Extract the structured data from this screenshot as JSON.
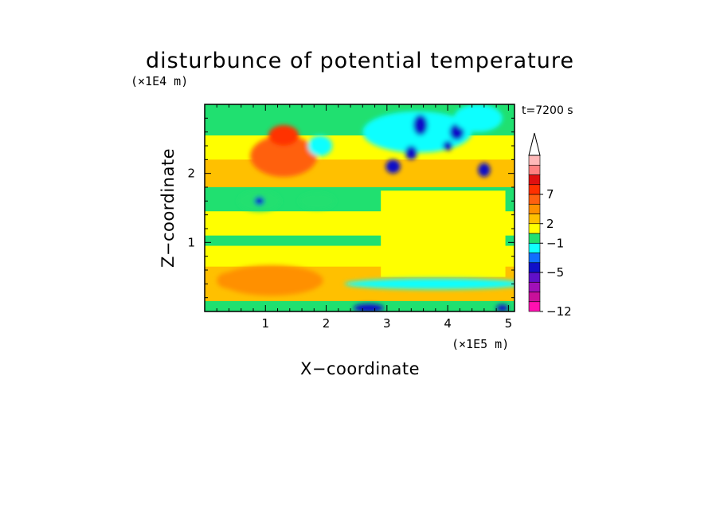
{
  "chart_data": {
    "type": "heatmap",
    "title": "disturbunce of potential temperature",
    "xlabel": "X−coordinate",
    "ylabel": "Z−coordinate",
    "x_unit_label": "(×1E5 m)",
    "y_unit_label": "(×1E4 m)",
    "time_label": "t=7200 s",
    "xlim": [
      0,
      5.1
    ],
    "ylim": [
      0,
      3.0
    ],
    "x_ticks": [
      {
        "value": 1,
        "label": "1"
      },
      {
        "value": 2,
        "label": "2"
      },
      {
        "value": 3,
        "label": "3"
      },
      {
        "value": 4,
        "label": "4"
      },
      {
        "value": 5,
        "label": "5"
      }
    ],
    "y_ticks": [
      {
        "value": 1,
        "label": "1"
      },
      {
        "value": 2,
        "label": "2"
      }
    ],
    "colorbar": {
      "levels": [
        {
          "color": "#ff10b0"
        },
        {
          "color": "#c8109a"
        },
        {
          "color": "#a010b8"
        },
        {
          "color": "#6010c8"
        },
        {
          "color": "#1010c8"
        },
        {
          "color": "#1070ff"
        },
        {
          "color": "#10ffff"
        },
        {
          "color": "#20e070"
        },
        {
          "color": "#ffff00"
        },
        {
          "color": "#ffc000"
        },
        {
          "color": "#ff9000"
        },
        {
          "color": "#ff6010"
        },
        {
          "color": "#ff3000"
        },
        {
          "color": "#e01010"
        },
        {
          "color": "#ff8080"
        },
        {
          "color": "#ffb8b8"
        }
      ],
      "extend_max": true,
      "labels": [
        {
          "index": 0,
          "label": "−12"
        },
        {
          "index": 4,
          "label": "−5"
        },
        {
          "index": 7,
          "label": "−1"
        },
        {
          "index": 9,
          "label": "2"
        },
        {
          "index": 12,
          "label": "7"
        }
      ]
    },
    "features": [
      {
        "x": 1.1,
        "z": 0.45,
        "level": 10,
        "sx": 0.85,
        "sz": 0.22
      },
      {
        "x": 0.4,
        "z": 0.45,
        "level": 10,
        "sx": 0.2,
        "sz": 0.12
      },
      {
        "x": 3.8,
        "z": 0.4,
        "level": 6,
        "sx": 1.5,
        "sz": 0.08
      },
      {
        "x": 1.3,
        "z": 2.25,
        "level": 11,
        "sx": 0.55,
        "sz": 0.3
      },
      {
        "x": 1.3,
        "z": 2.55,
        "level": 12,
        "sx": 0.25,
        "sz": 0.15
      },
      {
        "x": 0.9,
        "z": 1.6,
        "level": 7,
        "sx": 0.35,
        "sz": 0.15
      },
      {
        "x": 0.9,
        "z": 1.6,
        "level": 4,
        "sx": 0.08,
        "sz": 0.06
      },
      {
        "x": 1.85,
        "z": 1.6,
        "level": 7,
        "sx": 0.3,
        "sz": 0.12
      },
      {
        "x": 1.9,
        "z": 2.4,
        "level": 6,
        "sx": 0.2,
        "sz": 0.15
      },
      {
        "x": 3.5,
        "z": 2.6,
        "level": 6,
        "sx": 0.9,
        "sz": 0.3
      },
      {
        "x": 3.1,
        "z": 2.1,
        "level": 4,
        "sx": 0.12,
        "sz": 0.1
      },
      {
        "x": 3.4,
        "z": 2.3,
        "level": 4,
        "sx": 0.1,
        "sz": 0.1
      },
      {
        "x": 3.55,
        "z": 2.7,
        "level": 4,
        "sx": 0.12,
        "sz": 0.15
      },
      {
        "x": 4.0,
        "z": 2.4,
        "level": 4,
        "sx": 0.08,
        "sz": 0.07
      },
      {
        "x": 4.15,
        "z": 2.6,
        "level": 4,
        "sx": 0.12,
        "sz": 0.12
      },
      {
        "x": 4.6,
        "z": 2.05,
        "level": 4,
        "sx": 0.1,
        "sz": 0.1
      },
      {
        "x": 4.5,
        "z": 2.8,
        "level": 6,
        "sx": 0.4,
        "sz": 0.2
      },
      {
        "x": 2.7,
        "z": 0.05,
        "level": 4,
        "sx": 0.25,
        "sz": 0.06
      },
      {
        "x": 4.9,
        "z": 0.05,
        "level": 4,
        "sx": 0.1,
        "sz": 0.05
      }
    ]
  }
}
